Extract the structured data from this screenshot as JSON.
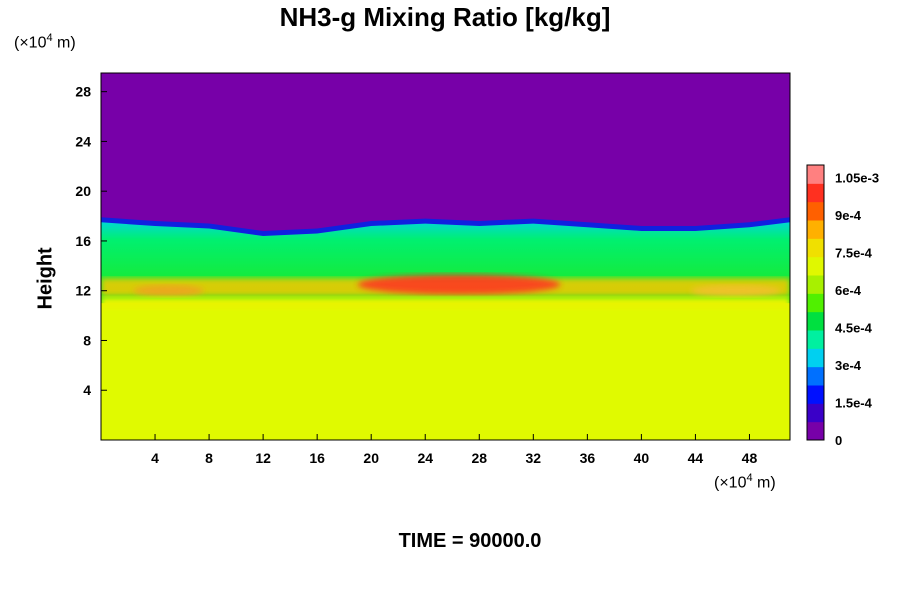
{
  "title": "NH3-g Mixing Ratio [kg/kg]",
  "ylabel": "Height",
  "unit_y": {
    "prefix": "(×10",
    "exp": "4",
    "suffix": " m)"
  },
  "unit_x": {
    "prefix": "(×10",
    "exp": "4",
    "suffix": " m)"
  },
  "footer": "TIME = 90000.0",
  "chart_data": {
    "type": "heatmap",
    "title": "NH3-g Mixing Ratio [kg/kg]",
    "ylabel": "Height",
    "xlim": [
      0,
      51
    ],
    "ylim": [
      0,
      29.5
    ],
    "x_ticks": [
      "4",
      "8",
      "12",
      "16",
      "20",
      "24",
      "28",
      "32",
      "36",
      "40",
      "44",
      "48"
    ],
    "y_ticks": [
      "4",
      "8",
      "12",
      "16",
      "20",
      "24",
      "28"
    ],
    "colorbar": {
      "range": [
        0,
        0.0011
      ],
      "tick_values": [
        0,
        0.00015,
        0.0003,
        0.00045,
        0.0006,
        0.00075,
        0.0009,
        0.00105
      ],
      "tick_labels": [
        "0",
        "1.5e-4",
        "3e-4",
        "4.5e-4",
        "6e-4",
        "7.5e-4",
        "9e-4",
        "1.05e-3"
      ],
      "colors": [
        "#7700a8",
        "#3a00c8",
        "#0010ff",
        "#0070ff",
        "#00d0f0",
        "#00f0a0",
        "#00e040",
        "#50f000",
        "#a8f000",
        "#e0f800",
        "#f0e000",
        "#ffb000",
        "#ff6000",
        "#ff3020",
        "#ff8080"
      ]
    },
    "profile": {
      "x": [
        0,
        4,
        8,
        12,
        16,
        20,
        24,
        28,
        32,
        36,
        40,
        44,
        48,
        51
      ],
      "top_height": [
        17.9,
        17.6,
        17.4,
        16.8,
        17.0,
        17.6,
        17.8,
        17.6,
        17.8,
        17.5,
        17.2,
        17.2,
        17.5,
        17.9
      ],
      "upper_value": 0,
      "cloud_layer_value": 0.0005,
      "base_layer_value": 0.00078,
      "high_core": {
        "x_range": [
          19,
          34
        ],
        "height": 12.5,
        "value": 0.00098
      }
    }
  }
}
